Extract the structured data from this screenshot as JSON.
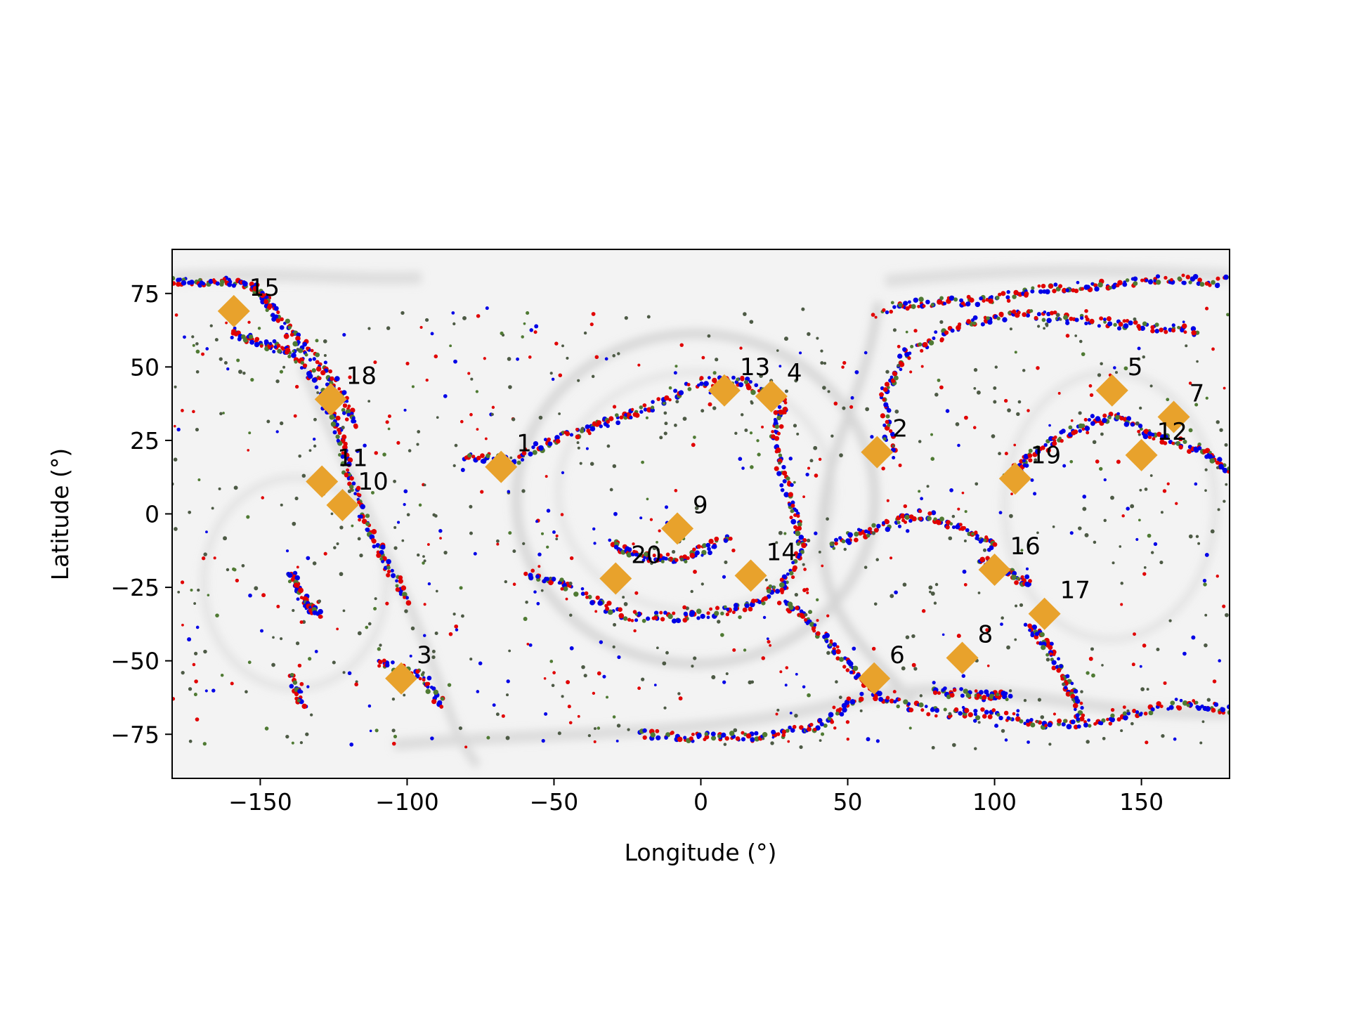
{
  "chart_data": {
    "type": "scatter",
    "title": "",
    "xlabel": "Longitude (°)",
    "ylabel": "Latitude (°)",
    "xlim": [
      -180,
      180
    ],
    "ylim": [
      -90,
      90
    ],
    "x_ticks": [
      -150,
      -100,
      -50,
      0,
      50,
      100,
      150
    ],
    "y_ticks": [
      -75,
      -50,
      -25,
      0,
      25,
      50,
      75
    ],
    "x_tick_labels": [
      "−150",
      "−100",
      "−50",
      "0",
      "50",
      "100",
      "150"
    ],
    "y_tick_labels": [
      "−75",
      "−50",
      "−25",
      "0",
      "25",
      "50",
      "75"
    ],
    "grid": false,
    "legend": "none",
    "background": "grayscale surface map",
    "marker_color": "#e8a22c",
    "series_colors": [
      "#e00000",
      "#0000e6",
      "#4f7a33"
    ],
    "sites": [
      {
        "label": "1",
        "lon": -68,
        "lat": 16
      },
      {
        "label": "2",
        "lon": 60,
        "lat": 21
      },
      {
        "label": "3",
        "lon": -102,
        "lat": -56
      },
      {
        "label": "4",
        "lon": 24,
        "lat": 40
      },
      {
        "label": "5",
        "lon": 140,
        "lat": 42
      },
      {
        "label": "6",
        "lon": 59,
        "lat": -56
      },
      {
        "label": "7",
        "lon": 161,
        "lat": 33
      },
      {
        "label": "8",
        "lon": 89,
        "lat": -49
      },
      {
        "label": "9",
        "lon": -8,
        "lat": -5
      },
      {
        "label": "10",
        "lon": -122,
        "lat": 3
      },
      {
        "label": "11",
        "lon": -129,
        "lat": 11
      },
      {
        "label": "12",
        "lon": 150,
        "lat": 20
      },
      {
        "label": "13",
        "lon": 8,
        "lat": 42
      },
      {
        "label": "14",
        "lon": 17,
        "lat": -21
      },
      {
        "label": "15",
        "lon": -159,
        "lat": 69
      },
      {
        "label": "16",
        "lon": 100,
        "lat": -19
      },
      {
        "label": "17",
        "lon": 117,
        "lat": -34
      },
      {
        "label": "18",
        "lon": -126,
        "lat": 39
      },
      {
        "label": "19",
        "lon": 107,
        "lat": 12
      },
      {
        "label": "20",
        "lon": -29,
        "lat": -22
      }
    ]
  }
}
